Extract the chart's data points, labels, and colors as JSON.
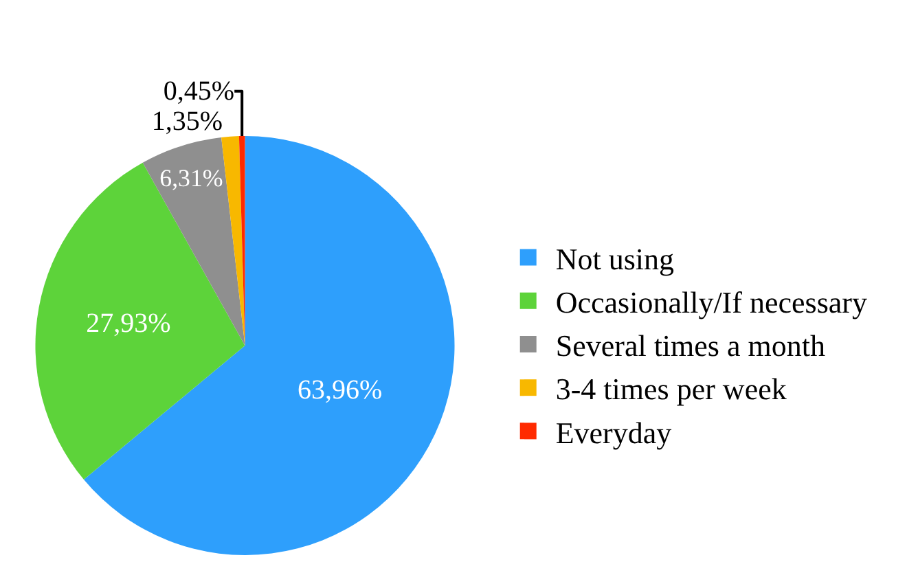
{
  "chart_data": {
    "type": "pie",
    "categories": [
      "Not using",
      "Occasionally/If necessary",
      "Several times a month",
      "3-4 times per week",
      "Everyday"
    ],
    "values": [
      63.96,
      27.93,
      6.31,
      1.35,
      0.45
    ],
    "colors": [
      "#2e9ffc",
      "#5dd33a",
      "#8f8f8f",
      "#f8b800",
      "#ff2a00"
    ],
    "value_labels": [
      "63,96%",
      "27,93%",
      "6,31%",
      "1,35%",
      "0,45%"
    ],
    "legend": "right"
  }
}
